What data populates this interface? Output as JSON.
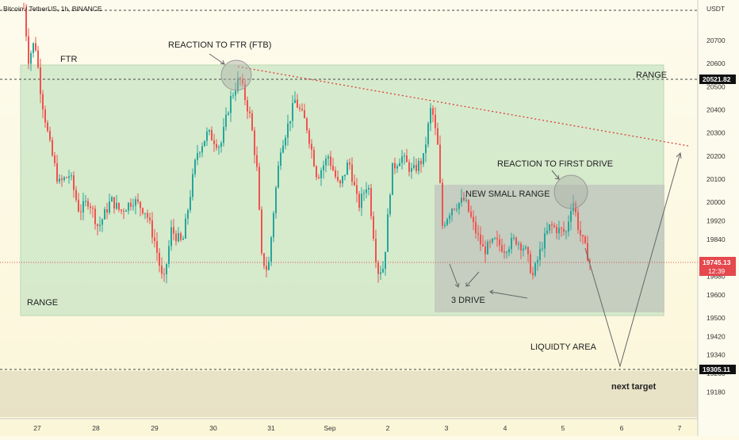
{
  "header": {
    "symbol": "Bitcoin / TetherUS, 1h, BINANCE",
    "currency": "USDT"
  },
  "chart_data": {
    "type": "candlestick",
    "title": "Bitcoin / TetherUS, 1h, BINANCE",
    "y_unit": "USDT",
    "ylim": [
      19140,
      20830
    ],
    "y_ticks": [
      20700,
      20600,
      20500,
      20400,
      20300,
      20200,
      20100,
      20000,
      19920,
      19840,
      19680,
      19600,
      19500,
      19420,
      19340,
      19260,
      19180
    ],
    "x_ticks": [
      "27",
      "28",
      "29",
      "30",
      "31",
      "Sep",
      "2",
      "3",
      "4",
      "5",
      "6",
      "7"
    ],
    "price_lines": [
      {
        "label": "top-level",
        "price": 20830,
        "style": "dashed",
        "color": "#444444"
      },
      {
        "label": "range-high",
        "price": 20521.82,
        "style": "dashed",
        "color": "#444444"
      },
      {
        "label": "current",
        "price": 19745.13,
        "style": "dotted",
        "color": "#e05050"
      },
      {
        "label": "target",
        "price": 19305.11,
        "style": "dashed",
        "color": "#444444"
      }
    ],
    "current_price": "19745.13",
    "countdown": "12:39",
    "range_high_label": "20521.82",
    "target_label": "19305.11",
    "up_color": "#26a69a",
    "down_color": "#ef5350",
    "zones": [
      {
        "name": "range",
        "color": "#c8e6c9"
      },
      {
        "name": "small-range",
        "color": "#c9cfc5"
      },
      {
        "name": "liquidity-area",
        "color": "#e8e1c6"
      }
    ],
    "annotations": {
      "ftr": "FTR",
      "reaction_ftb": "REACTION TO FTR (FTB)",
      "range_top": "RANGE",
      "range_bottom": "RANGE",
      "reaction_first_drive": "REACTION TO FIRST DRIVE",
      "new_small_range": "NEW SMALL RANGE",
      "three_drive": "3 DRIVE",
      "liquidity_area": "LIQUIDTY AREA",
      "next_target": "next target"
    }
  }
}
